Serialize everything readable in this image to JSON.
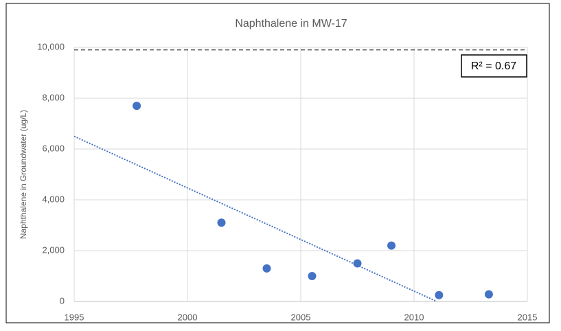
{
  "chart_data": {
    "type": "scatter",
    "title": "Naphthalene in MW-17",
    "y_label": "Naphthalene in Groundwater (ug/L)",
    "x": [
      1997.76,
      2001.5,
      2003.5,
      2005.5,
      2007.5,
      2009,
      2011.1,
      2013.3
    ],
    "values": [
      7700,
      3100,
      1300,
      1000,
      1500,
      2200,
      250,
      280
    ],
    "color": "#4472c4",
    "trendline": {
      "x": [
        1995,
        2011
      ],
      "values": [
        6500,
        0
      ],
      "color": "#4472c4"
    },
    "reference_line": 9900,
    "annotation": "R² = 0.67",
    "xlim": [
      1995,
      2015
    ],
    "xticks": [
      1995,
      2000,
      2005,
      2010,
      2015
    ],
    "ylim": [
      0,
      10000
    ],
    "yticks": [
      0,
      {
        "value": 2000,
        "label": "2,000"
      },
      {
        "value": 4000,
        "label": "4,000"
      },
      {
        "value": 6000,
        "label": "6,000"
      },
      {
        "value": 8000,
        "label": "8,000"
      },
      {
        "value": 10000,
        "label": "10,000"
      }
    ],
    "grid": true
  }
}
